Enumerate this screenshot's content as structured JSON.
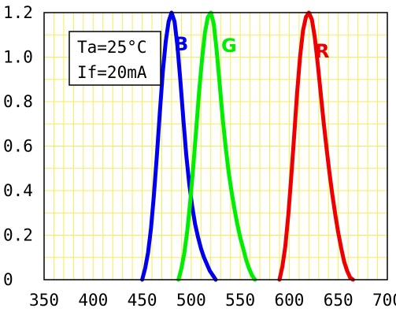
{
  "chart_data": {
    "type": "line",
    "title": "",
    "xlabel": "",
    "ylabel": "",
    "xlim": [
      350,
      700
    ],
    "ylim": [
      0,
      1.2
    ],
    "x_ticks": [
      350,
      400,
      450,
      500,
      550,
      600,
      650,
      700
    ],
    "y_ticks": [
      0,
      0.2,
      0.4,
      0.6,
      0.8,
      1.0,
      1.2
    ],
    "x_tick_labels": [
      "350",
      "400",
      "450",
      "500",
      "550",
      "600",
      "650",
      "700"
    ],
    "y_tick_labels": [
      "0",
      "0.2",
      "0.4",
      "0.6",
      "0.8",
      "1.0",
      "1.2"
    ],
    "grid": true,
    "grid_color": "#f5ec5a",
    "annotation_lines": [
      "Ta=25°C",
      "If=20mA"
    ],
    "series": [
      {
        "name": "B",
        "color": "#0000ee",
        "x": [
          450,
          453,
          456,
          459,
          462,
          465,
          468,
          471,
          474,
          477,
          480,
          483,
          486,
          489,
          492,
          495,
          498,
          501,
          504,
          507,
          510,
          513,
          516,
          519,
          522,
          525
        ],
        "y": [
          0,
          0.05,
          0.12,
          0.23,
          0.38,
          0.56,
          0.75,
          0.93,
          1.07,
          1.16,
          1.2,
          1.16,
          1.05,
          0.89,
          0.72,
          0.56,
          0.43,
          0.33,
          0.25,
          0.19,
          0.14,
          0.1,
          0.07,
          0.04,
          0.02,
          0
        ]
      },
      {
        "name": "G",
        "color": "#00ee00",
        "x": [
          487,
          490,
          493,
          496,
          499,
          502,
          505,
          508,
          511,
          514,
          517,
          520,
          523,
          526,
          529,
          532,
          535,
          538,
          541,
          544,
          547,
          550,
          553,
          556,
          559,
          562,
          565
        ],
        "y": [
          0,
          0.05,
          0.12,
          0.22,
          0.35,
          0.5,
          0.67,
          0.84,
          0.99,
          1.11,
          1.18,
          1.2,
          1.15,
          1.03,
          0.88,
          0.73,
          0.6,
          0.49,
          0.4,
          0.32,
          0.25,
          0.19,
          0.14,
          0.09,
          0.05,
          0.02,
          0
        ]
      },
      {
        "name": "R",
        "color": "#ee0000",
        "x": [
          590,
          593,
          596,
          599,
          602,
          605,
          608,
          611,
          614,
          617,
          620,
          623,
          626,
          629,
          632,
          635,
          638,
          641,
          644,
          647,
          650,
          653,
          656,
          659,
          662,
          665
        ],
        "y": [
          0,
          0.06,
          0.15,
          0.29,
          0.46,
          0.65,
          0.84,
          1.0,
          1.12,
          1.18,
          1.2,
          1.17,
          1.09,
          0.97,
          0.84,
          0.71,
          0.59,
          0.48,
          0.38,
          0.29,
          0.21,
          0.14,
          0.08,
          0.04,
          0.01,
          0
        ]
      }
    ]
  }
}
